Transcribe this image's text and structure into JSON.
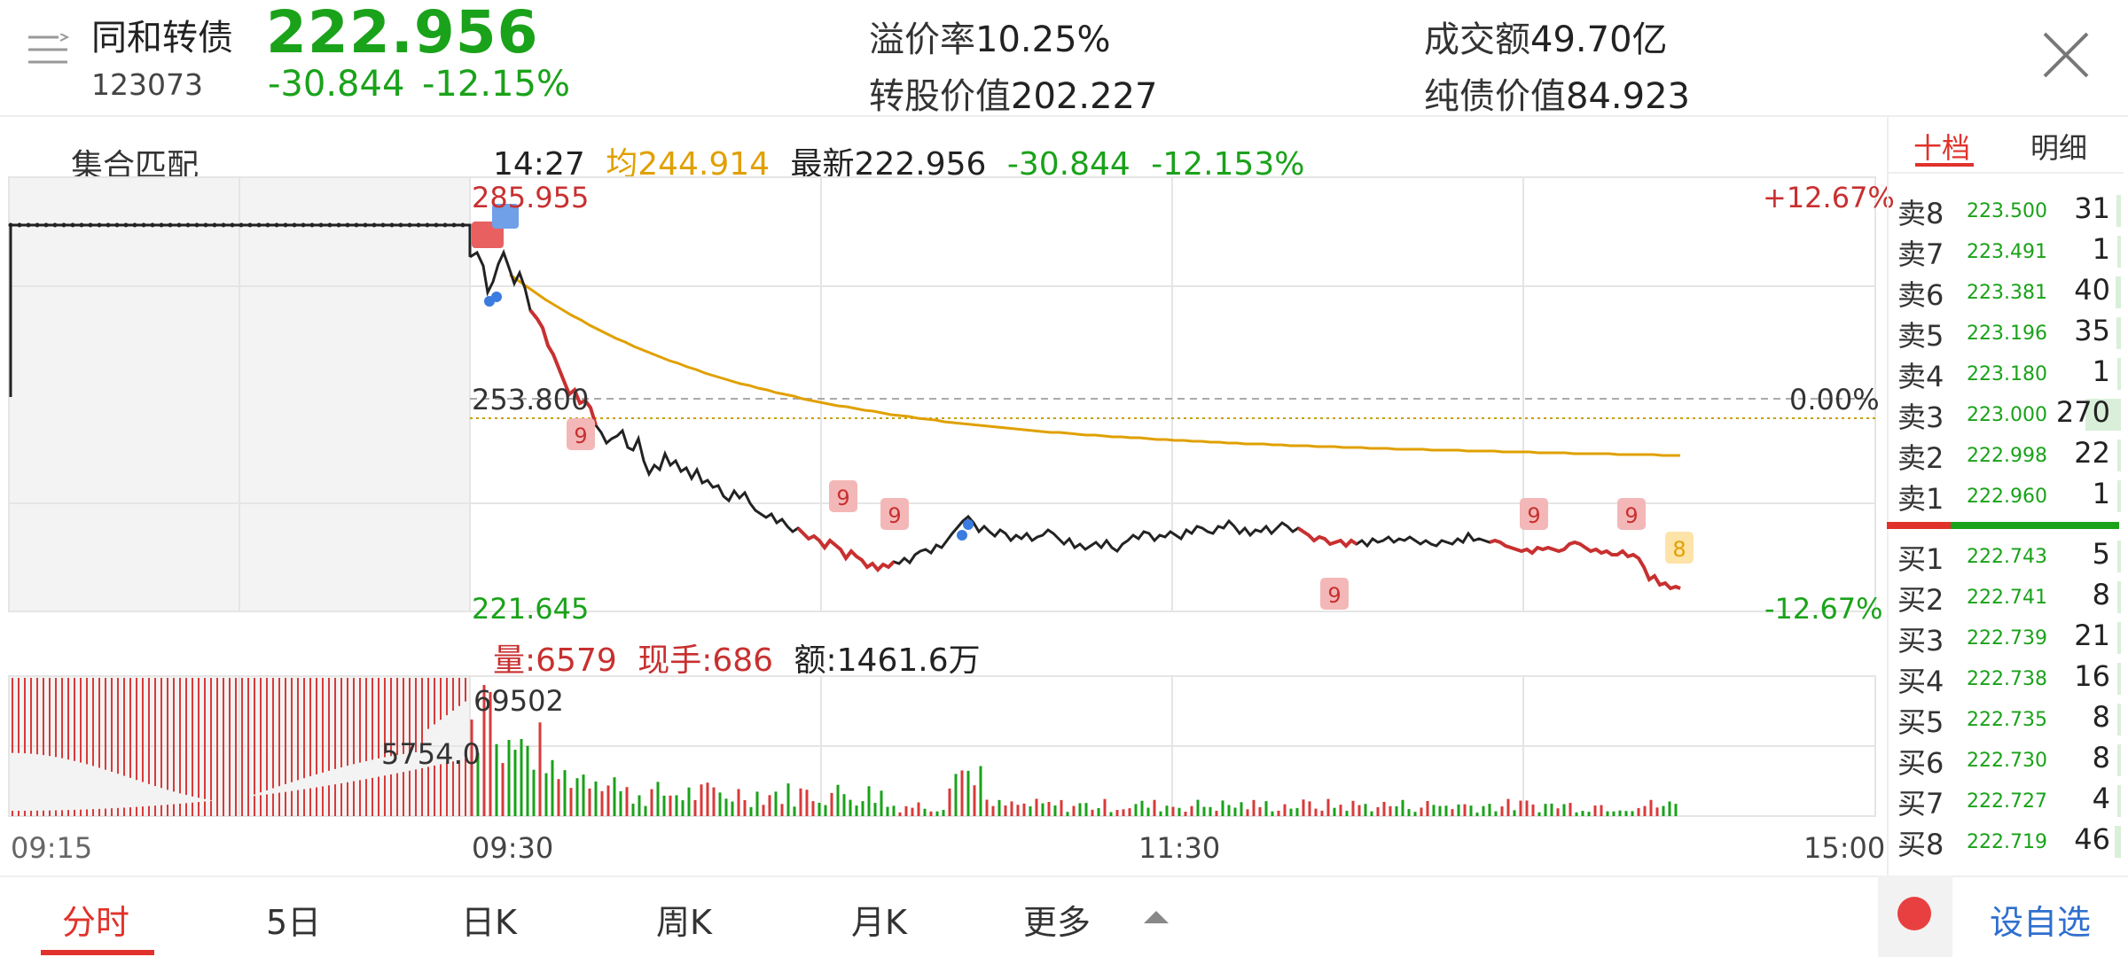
{
  "header": {
    "name": "同和转债",
    "code": "123073",
    "price": "222.956",
    "change": "-30.844",
    "change_pct": "-12.15%",
    "premium_label": "溢价率",
    "premium_value": "10.25%",
    "conv_value_label": "转股价值",
    "conv_value": "202.227",
    "turnover_label": "成交额",
    "turnover_value": "49.70亿",
    "bond_value_label": "纯债价值",
    "bond_value": "84.923"
  },
  "chart_header": {
    "auction_label": "集合匹配",
    "time": "14:27",
    "avg": "均244.914",
    "latest": "最新222.956",
    "change": "-30.844",
    "change_pct": "-12.153%"
  },
  "price_axis": {
    "high": "285.955",
    "mid": "253.800",
    "low": "221.645",
    "high_pct": "+12.67%",
    "mid_pct": "0.00%",
    "low_pct": "-12.67%"
  },
  "volume_header": {
    "volume": "量:6579",
    "current_hand": "现手:686",
    "amount": "额:1461.6万"
  },
  "volume_axis": {
    "max": "69502",
    "auction_max": "5754.0"
  },
  "time_axis": [
    "09:15",
    "09:30",
    "11:30",
    "15:00"
  ],
  "signals": [
    "9",
    "9",
    "9",
    "9",
    "9",
    "9",
    "8"
  ],
  "right_tabs": [
    "十档",
    "明细"
  ],
  "order_book": {
    "asks": [
      {
        "label": "卖8",
        "price": "223.500",
        "qty": "31"
      },
      {
        "label": "卖7",
        "price": "223.491",
        "qty": "1"
      },
      {
        "label": "卖6",
        "price": "223.381",
        "qty": "40"
      },
      {
        "label": "卖5",
        "price": "223.196",
        "qty": "35"
      },
      {
        "label": "卖4",
        "price": "223.180",
        "qty": "1"
      },
      {
        "label": "卖3",
        "price": "223.000",
        "qty": "270"
      },
      {
        "label": "卖2",
        "price": "222.998",
        "qty": "22"
      },
      {
        "label": "卖1",
        "price": "222.960",
        "qty": "1"
      }
    ],
    "bids": [
      {
        "label": "买1",
        "price": "222.743",
        "qty": "5"
      },
      {
        "label": "买2",
        "price": "222.741",
        "qty": "8"
      },
      {
        "label": "买3",
        "price": "222.739",
        "qty": "21"
      },
      {
        "label": "买4",
        "price": "222.738",
        "qty": "16"
      },
      {
        "label": "买5",
        "price": "222.735",
        "qty": "8"
      },
      {
        "label": "买6",
        "price": "222.730",
        "qty": "8"
      },
      {
        "label": "买7",
        "price": "222.727",
        "qty": "4"
      },
      {
        "label": "买8",
        "price": "222.719",
        "qty": "46"
      }
    ]
  },
  "bottom_tabs": [
    "分时",
    "5日",
    "日K",
    "周K",
    "月K",
    "更多"
  ],
  "add_watch": "设自选",
  "colors": {
    "up": "#e0322b",
    "down": "#1aa21a",
    "avg": "#e0a000",
    "line": "#222222"
  }
}
